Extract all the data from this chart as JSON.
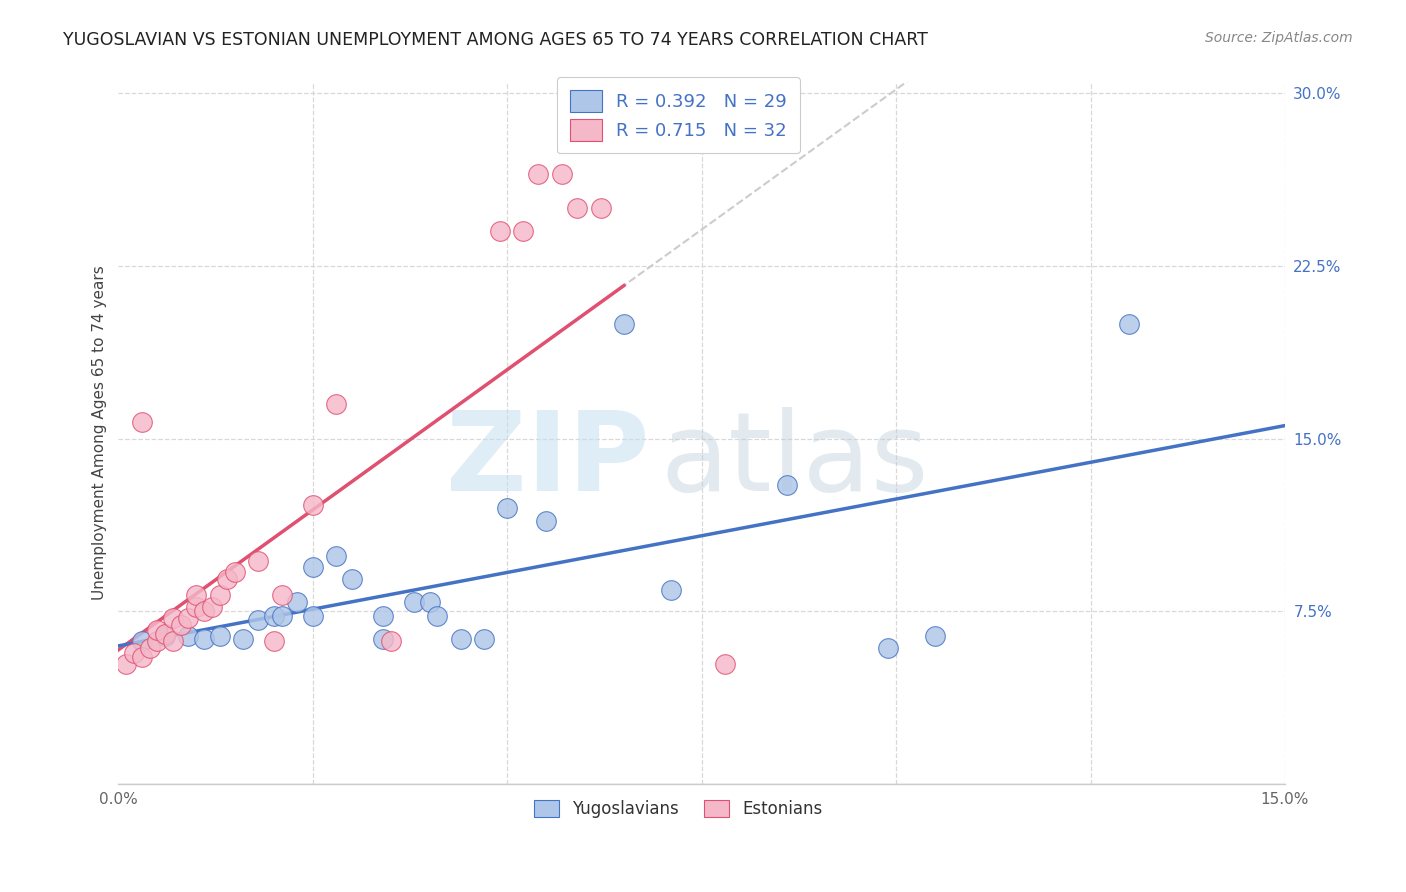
{
  "title": "YUGOSLAVIAN VS ESTONIAN UNEMPLOYMENT AMONG AGES 65 TO 74 YEARS CORRELATION CHART",
  "source": "Source: ZipAtlas.com",
  "ylabel": "Unemployment Among Ages 65 to 74 years",
  "xlim": [
    0.0,
    0.15
  ],
  "ylim": [
    0.0,
    0.305
  ],
  "xticks": [
    0.0,
    0.025,
    0.05,
    0.075,
    0.1,
    0.125,
    0.15
  ],
  "yticks": [
    0.0,
    0.075,
    0.15,
    0.225,
    0.3
  ],
  "xtick_labels": [
    "0.0%",
    "",
    "",
    "",
    "",
    "",
    "15.0%"
  ],
  "ytick_labels": [
    "",
    "7.5%",
    "15.0%",
    "22.5%",
    "30.0%"
  ],
  "background_color": "#ffffff",
  "grid_color": "#d8d8d8",
  "yugoslavian_color": "#aec6e8",
  "yugoslavian_edge": "#4472c4",
  "yugoslavian_trend": "#4472c4",
  "estonian_color": "#f4b8c8",
  "estonian_edge": "#e05070",
  "estonian_trend": "#e05070",
  "estonian_trend_dashed": "#cccccc",
  "R_yugo": "0.392",
  "N_yugo": "29",
  "R_esto": "0.715",
  "N_esto": "32",
  "legend_text_color": "#4472c4",
  "ytick_color": "#4472c4",
  "xtick_color": "#666666",
  "yugoslavian_points": [
    [
      0.003,
      0.062
    ],
    [
      0.006,
      0.064
    ],
    [
      0.009,
      0.064
    ],
    [
      0.011,
      0.063
    ],
    [
      0.013,
      0.064
    ],
    [
      0.016,
      0.063
    ],
    [
      0.018,
      0.071
    ],
    [
      0.02,
      0.073
    ],
    [
      0.021,
      0.073
    ],
    [
      0.023,
      0.079
    ],
    [
      0.025,
      0.073
    ],
    [
      0.025,
      0.094
    ],
    [
      0.028,
      0.099
    ],
    [
      0.03,
      0.089
    ],
    [
      0.034,
      0.063
    ],
    [
      0.034,
      0.073
    ],
    [
      0.038,
      0.079
    ],
    [
      0.04,
      0.079
    ],
    [
      0.041,
      0.073
    ],
    [
      0.044,
      0.063
    ],
    [
      0.047,
      0.063
    ],
    [
      0.05,
      0.12
    ],
    [
      0.055,
      0.114
    ],
    [
      0.065,
      0.2
    ],
    [
      0.071,
      0.084
    ],
    [
      0.086,
      0.13
    ],
    [
      0.099,
      0.059
    ],
    [
      0.105,
      0.064
    ],
    [
      0.13,
      0.2
    ]
  ],
  "estonian_points": [
    [
      0.001,
      0.052
    ],
    [
      0.002,
      0.057
    ],
    [
      0.003,
      0.055
    ],
    [
      0.004,
      0.059
    ],
    [
      0.005,
      0.062
    ],
    [
      0.005,
      0.067
    ],
    [
      0.006,
      0.065
    ],
    [
      0.007,
      0.062
    ],
    [
      0.007,
      0.072
    ],
    [
      0.008,
      0.069
    ],
    [
      0.009,
      0.072
    ],
    [
      0.01,
      0.077
    ],
    [
      0.01,
      0.082
    ],
    [
      0.011,
      0.075
    ],
    [
      0.012,
      0.077
    ],
    [
      0.013,
      0.082
    ],
    [
      0.014,
      0.089
    ],
    [
      0.015,
      0.092
    ],
    [
      0.018,
      0.097
    ],
    [
      0.02,
      0.062
    ],
    [
      0.021,
      0.082
    ],
    [
      0.025,
      0.121
    ],
    [
      0.028,
      0.165
    ],
    [
      0.003,
      0.157
    ],
    [
      0.035,
      0.062
    ],
    [
      0.049,
      0.24
    ],
    [
      0.052,
      0.24
    ],
    [
      0.054,
      0.265
    ],
    [
      0.057,
      0.265
    ],
    [
      0.059,
      0.25
    ],
    [
      0.062,
      0.25
    ],
    [
      0.078,
      0.052
    ]
  ]
}
